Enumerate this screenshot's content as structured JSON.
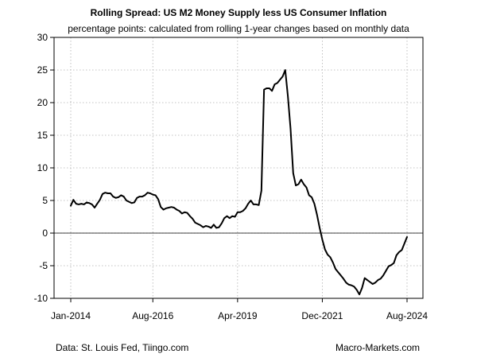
{
  "chart_data": {
    "type": "line",
    "title": "Rolling Spread: US M2 Money Supply less US Consumer Inflation",
    "subtitle": "percentage points: calculated from rolling 1-year changes based on monthly data",
    "xlabel": "",
    "ylabel": "",
    "ylim": [
      -10,
      30
    ],
    "yticks": [
      -10,
      -5,
      0,
      5,
      10,
      15,
      20,
      25,
      30
    ],
    "xlim": [
      2014.0,
      2024.583
    ],
    "xticks": [
      {
        "value": 2014.0,
        "label": "Jan-2014"
      },
      {
        "value": 2016.583,
        "label": "Aug-2016"
      },
      {
        "value": 2019.25,
        "label": "Apr-2019"
      },
      {
        "value": 2021.917,
        "label": "Dec-2021"
      },
      {
        "value": 2024.583,
        "label": "Aug-2024"
      }
    ],
    "grid": true,
    "zero_line": true,
    "series": [
      {
        "name": "Rolling Spread",
        "color": "#000000",
        "x": [
          2014.0,
          2014.083,
          2014.167,
          2014.25,
          2014.333,
          2014.417,
          2014.5,
          2014.583,
          2014.667,
          2014.75,
          2014.833,
          2014.917,
          2015.0,
          2015.083,
          2015.167,
          2015.25,
          2015.333,
          2015.417,
          2015.5,
          2015.583,
          2015.667,
          2015.75,
          2015.833,
          2015.917,
          2016.0,
          2016.083,
          2016.167,
          2016.25,
          2016.333,
          2016.417,
          2016.5,
          2016.583,
          2016.667,
          2016.75,
          2016.833,
          2016.917,
          2017.0,
          2017.083,
          2017.167,
          2017.25,
          2017.333,
          2017.417,
          2017.5,
          2017.583,
          2017.667,
          2017.75,
          2017.833,
          2017.917,
          2018.0,
          2018.083,
          2018.167,
          2018.25,
          2018.333,
          2018.417,
          2018.5,
          2018.583,
          2018.667,
          2018.75,
          2018.833,
          2018.917,
          2019.0,
          2019.083,
          2019.167,
          2019.25,
          2019.333,
          2019.417,
          2019.5,
          2019.583,
          2019.667,
          2019.75,
          2019.833,
          2019.917,
          2020.0,
          2020.083,
          2020.167,
          2020.25,
          2020.333,
          2020.417,
          2020.5,
          2020.583,
          2020.667,
          2020.75,
          2020.833,
          2020.917,
          2021.0,
          2021.083,
          2021.167,
          2021.25,
          2021.333,
          2021.417,
          2021.5,
          2021.583,
          2021.667,
          2021.75,
          2021.833,
          2021.917,
          2022.0,
          2022.083,
          2022.167,
          2022.25,
          2022.333,
          2022.417,
          2022.5,
          2022.583,
          2022.667,
          2022.75,
          2022.833,
          2022.917,
          2023.0,
          2023.083,
          2023.167,
          2023.25,
          2023.333,
          2023.417,
          2023.5,
          2023.583,
          2023.667,
          2023.75,
          2023.833,
          2023.917,
          2024.0,
          2024.083,
          2024.167,
          2024.25,
          2024.333,
          2024.417,
          2024.5,
          2024.583
        ],
        "values": [
          4.2,
          5.1,
          4.5,
          4.4,
          4.5,
          4.4,
          4.7,
          4.6,
          4.4,
          3.9,
          4.5,
          5.1,
          6.0,
          6.2,
          6.1,
          6.1,
          5.6,
          5.4,
          5.5,
          5.8,
          5.6,
          5.0,
          4.8,
          4.6,
          4.7,
          5.4,
          5.6,
          5.6,
          5.8,
          6.2,
          6.1,
          5.9,
          5.8,
          5.2,
          4.0,
          3.6,
          3.8,
          3.9,
          4.0,
          3.9,
          3.6,
          3.4,
          3.0,
          3.2,
          3.1,
          2.6,
          2.2,
          1.6,
          1.4,
          1.2,
          0.9,
          1.1,
          1.0,
          0.8,
          1.3,
          0.8,
          0.9,
          1.5,
          2.3,
          2.6,
          2.3,
          2.6,
          2.5,
          3.2,
          3.2,
          3.4,
          3.8,
          4.5,
          5.0,
          4.4,
          4.4,
          4.3,
          6.5,
          22.0,
          22.2,
          22.2,
          21.8,
          22.8,
          23.0,
          23.5,
          24.0,
          25.0,
          21.0,
          16.0,
          9.2,
          7.3,
          7.5,
          8.2,
          7.5,
          7.0,
          5.8,
          5.5,
          4.5,
          2.8,
          0.8,
          -1.0,
          -2.5,
          -3.3,
          -3.7,
          -4.5,
          -5.5,
          -6.0,
          -6.5,
          -7.0,
          -7.6,
          -7.9,
          -8.0,
          -8.2,
          -8.7,
          -9.4,
          -8.4,
          -6.9,
          -7.2,
          -7.5,
          -7.8,
          -7.6,
          -7.2,
          -7.0,
          -6.5,
          -5.8,
          -5.1,
          -4.9,
          -4.6,
          -3.4,
          -2.9,
          -2.6,
          -1.6,
          -0.6
        ]
      }
    ]
  },
  "footer": {
    "source": "Data: St. Louis Fed, Tiingo.com",
    "brand": "Macro-Markets.com"
  }
}
